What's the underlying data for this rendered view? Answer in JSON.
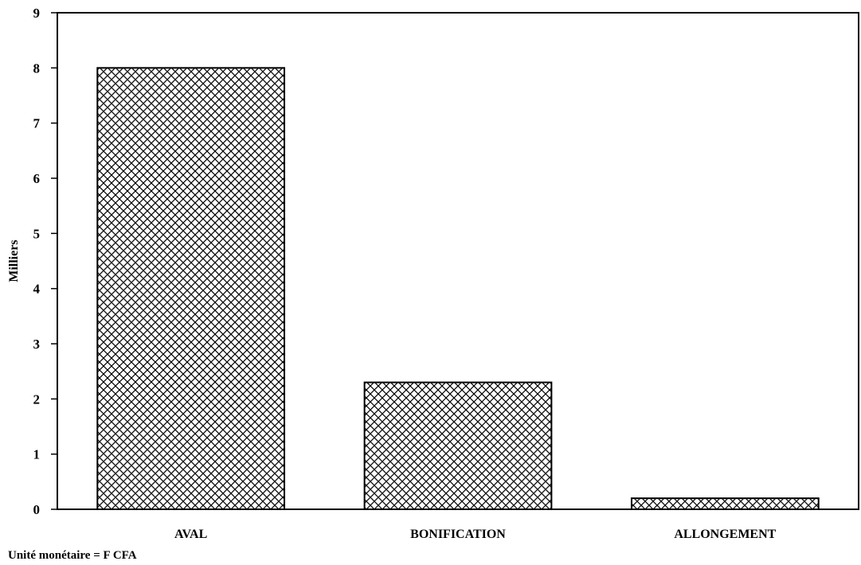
{
  "chart_data": {
    "type": "bar",
    "title": "",
    "xlabel": "",
    "ylabel": "Milliers",
    "categories": [
      "AVAL",
      "BONIFICATION",
      "ALLONGEMENT"
    ],
    "values": [
      8.0,
      2.3,
      0.2
    ],
    "ylim": [
      0,
      9
    ],
    "yticks": [
      "0",
      "1",
      "2",
      "3",
      "4",
      "5",
      "6",
      "7",
      "8",
      "9"
    ],
    "grid": false,
    "bar_fill": "crosshatch",
    "bar_color": "#000000",
    "background": "#ffffff"
  },
  "footnote": "Unité monétaire = F CFA"
}
